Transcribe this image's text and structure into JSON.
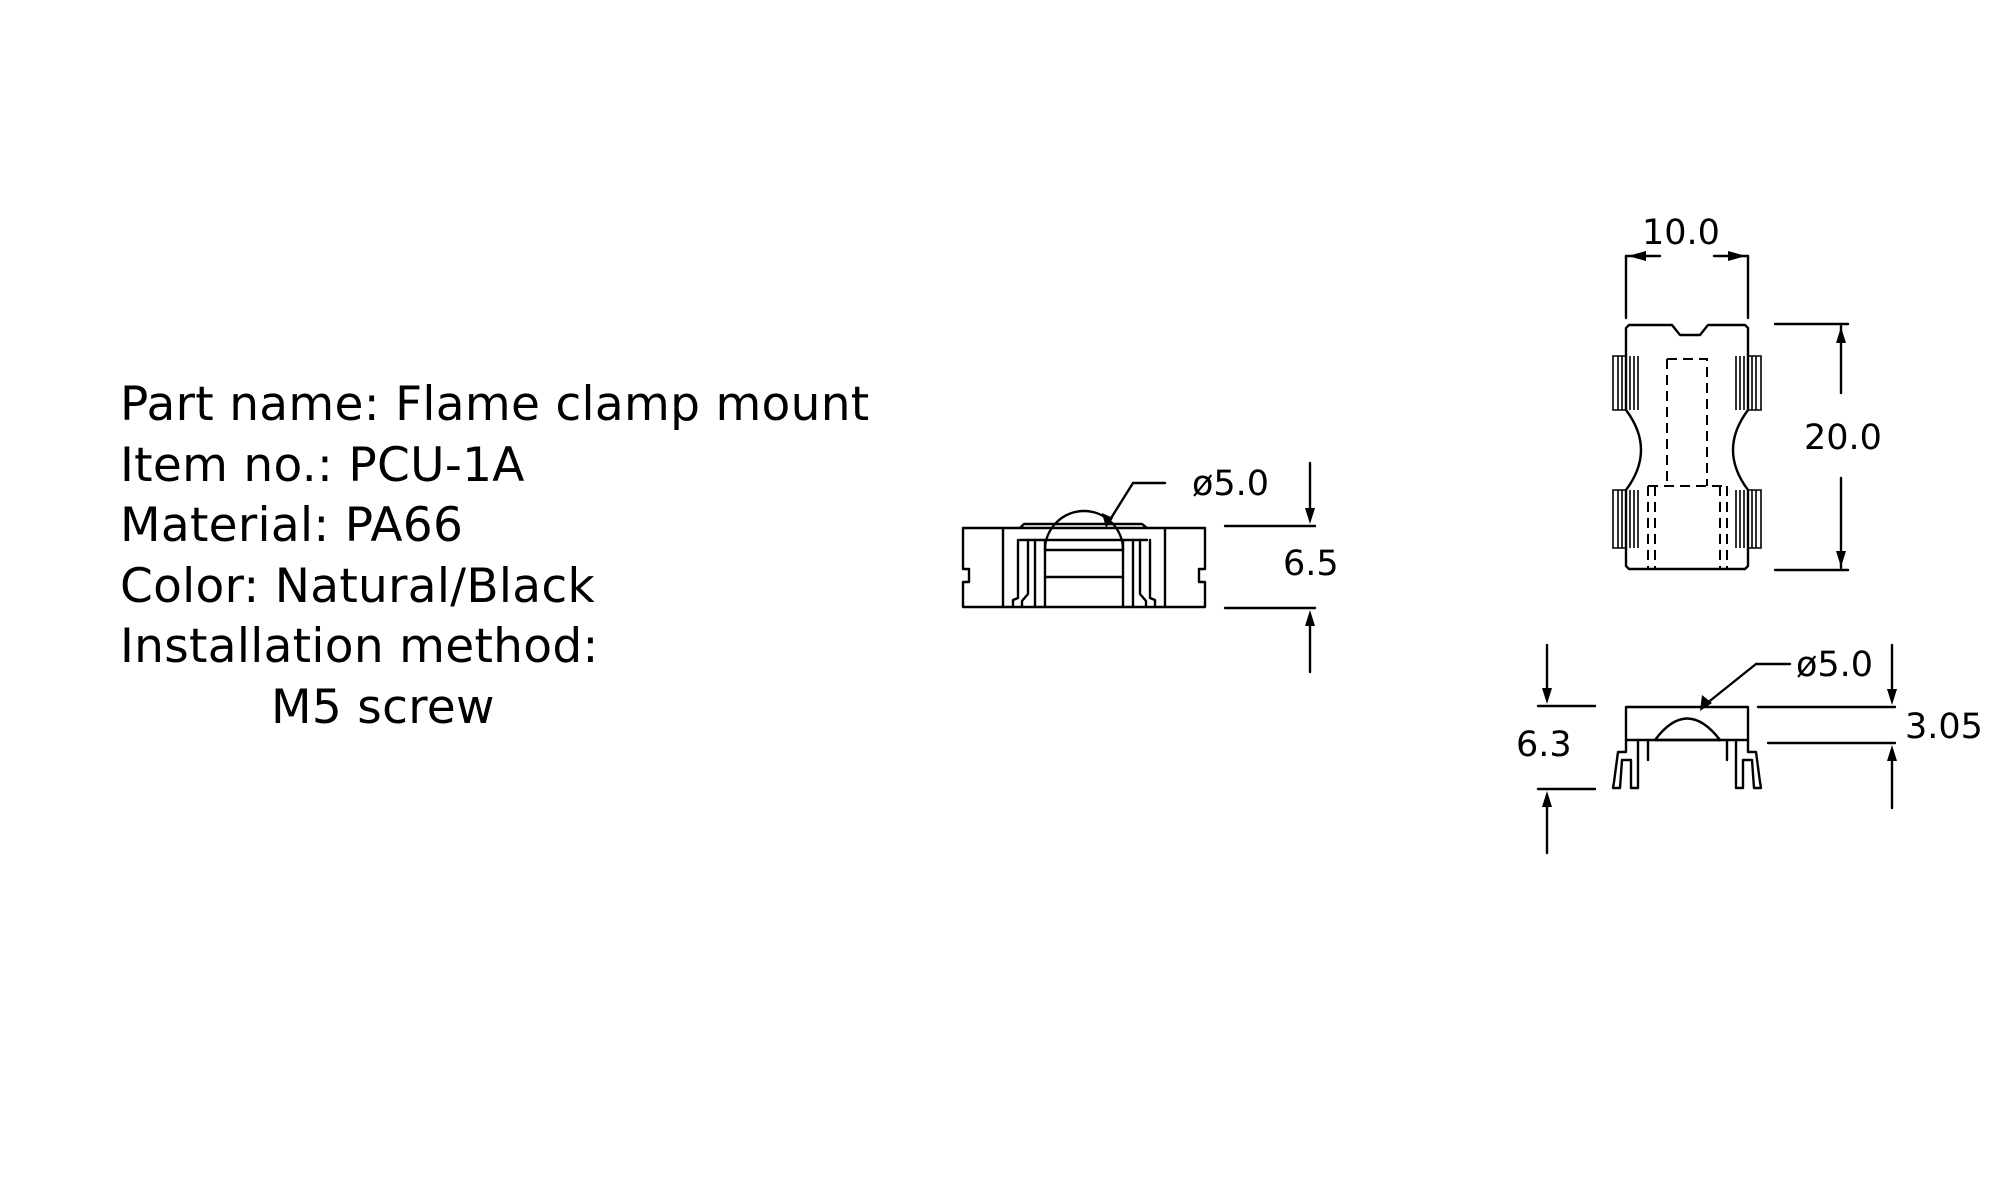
{
  "specs": {
    "part_name": "Part name: Flame clamp mount",
    "item_no": "Item no.: PCU-1A",
    "material": "Material: PA66",
    "color": "Color: Natural/Black",
    "installation_label": "Installation method:",
    "installation_value": "M5 screw"
  },
  "dimensions": {
    "front_hole": "ø5.0",
    "front_height": "6.5",
    "top_width": "10.0",
    "top_length": "20.0",
    "side_hole": "ø5.0",
    "side_height": "6.3",
    "side_top": "3.05"
  }
}
